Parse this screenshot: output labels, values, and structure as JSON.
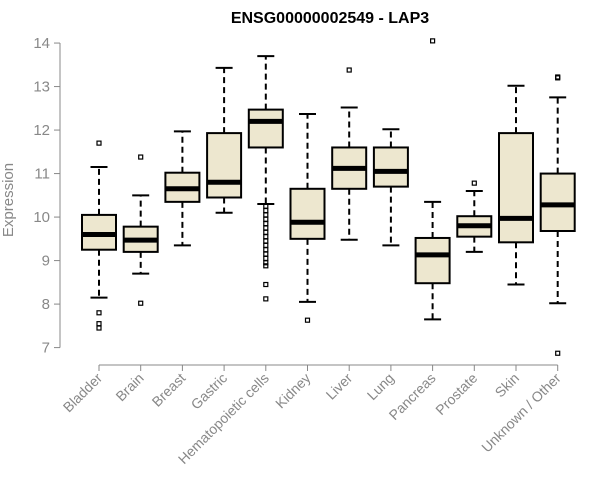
{
  "chart_data": {
    "type": "box",
    "title": "ENSG00000002549 - LAP3",
    "xlabel": "",
    "ylabel": "Expression",
    "ylim": [
      6.6,
      14.3
    ],
    "yticks": [
      7,
      8,
      9,
      10,
      11,
      12,
      13,
      14
    ],
    "grid": false,
    "box_fill": "#EDE7CF",
    "categories": [
      "Bladder",
      "Brain",
      "Breast",
      "Gastric",
      "Hematopoietic cells",
      "Kidney",
      "Liver",
      "Lung",
      "Pancreas",
      "Prostate",
      "Skin",
      "Unknown / Other"
    ],
    "series": [
      {
        "name": "Bladder",
        "whisker_low": 8.15,
        "q1": 9.25,
        "median": 9.6,
        "q3": 10.05,
        "whisker_high": 11.15,
        "outliers": [
          11.7,
          7.45,
          7.55,
          7.8
        ]
      },
      {
        "name": "Brain",
        "whisker_low": 8.7,
        "q1": 9.2,
        "median": 9.47,
        "q3": 9.78,
        "whisker_high": 10.5,
        "outliers": [
          11.38,
          8.02
        ]
      },
      {
        "name": "Breast",
        "whisker_low": 9.35,
        "q1": 10.35,
        "median": 10.65,
        "q3": 11.02,
        "whisker_high": 11.97,
        "outliers": []
      },
      {
        "name": "Gastric",
        "whisker_low": 10.1,
        "q1": 10.45,
        "median": 10.8,
        "q3": 11.93,
        "whisker_high": 13.43,
        "outliers": []
      },
      {
        "name": "Hematopoietic cells",
        "whisker_low": 10.3,
        "q1": 11.6,
        "median": 12.2,
        "q3": 12.47,
        "whisker_high": 13.7,
        "outliers": [
          10.25,
          10.15,
          10.05,
          9.95,
          9.85,
          9.75,
          9.65,
          9.55,
          9.45,
          9.35,
          9.25,
          9.15,
          9.05,
          8.95,
          8.88,
          8.45,
          8.12
        ]
      },
      {
        "name": "Kidney",
        "whisker_low": 8.05,
        "q1": 9.5,
        "median": 9.88,
        "q3": 10.65,
        "whisker_high": 12.37,
        "outliers": [
          7.63
        ]
      },
      {
        "name": "Liver",
        "whisker_low": 9.48,
        "q1": 10.65,
        "median": 11.12,
        "q3": 11.6,
        "whisker_high": 12.52,
        "outliers": [
          13.38
        ]
      },
      {
        "name": "Lung",
        "whisker_low": 9.35,
        "q1": 10.7,
        "median": 11.05,
        "q3": 11.6,
        "whisker_high": 12.02,
        "outliers": []
      },
      {
        "name": "Pancreas",
        "whisker_low": 7.65,
        "q1": 8.48,
        "median": 9.13,
        "q3": 9.52,
        "whisker_high": 10.35,
        "outliers": [
          14.05
        ]
      },
      {
        "name": "Prostate",
        "whisker_low": 9.2,
        "q1": 9.55,
        "median": 9.8,
        "q3": 10.02,
        "whisker_high": 10.6,
        "outliers": [
          10.78
        ]
      },
      {
        "name": "Skin",
        "whisker_low": 8.45,
        "q1": 9.42,
        "median": 9.97,
        "q3": 11.93,
        "whisker_high": 13.02,
        "outliers": []
      },
      {
        "name": "Unknown / Other",
        "whisker_low": 8.02,
        "q1": 9.68,
        "median": 10.28,
        "q3": 11.0,
        "whisker_high": 12.75,
        "outliers": [
          13.2,
          13.22,
          6.87
        ]
      }
    ]
  }
}
